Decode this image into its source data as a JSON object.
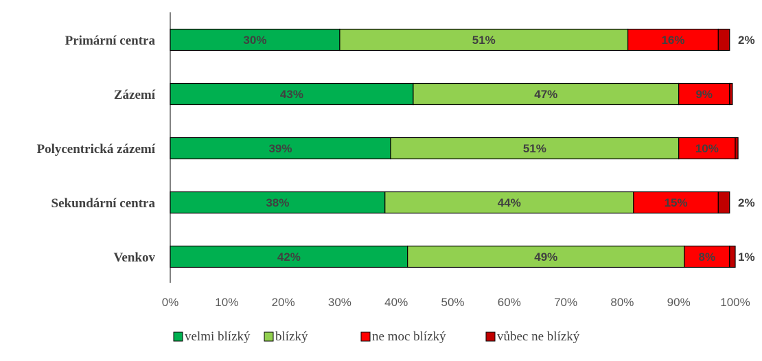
{
  "chart_data": {
    "type": "bar",
    "orientation": "horizontal",
    "stacked": true,
    "title": "",
    "xlabel": "",
    "ylabel": "",
    "xlim": [
      0,
      100
    ],
    "x_ticks": [
      "0%",
      "10%",
      "20%",
      "30%",
      "40%",
      "50%",
      "60%",
      "70%",
      "80%",
      "90%",
      "100%"
    ],
    "categories": [
      "Primární centra",
      "Zázemí",
      "Polycentrická zázemí",
      "Sekundární centra",
      "Venkov"
    ],
    "series": [
      {
        "name": "velmi blízký",
        "color": "#00b050",
        "values": [
          30,
          43,
          39,
          38,
          42
        ],
        "labels": [
          "30%",
          "43%",
          "39%",
          "38%",
          "42%"
        ]
      },
      {
        "name": "blízký",
        "color": "#92d050",
        "values": [
          51,
          47,
          51,
          44,
          49
        ],
        "labels": [
          "51%",
          "47%",
          "51%",
          "44%",
          "49%"
        ]
      },
      {
        "name": "ne moc blízký",
        "color": "#ff0000",
        "values": [
          16,
          9,
          10,
          15,
          8
        ],
        "labels": [
          "16%",
          "9%",
          "10%",
          "15%",
          "8%"
        ]
      },
      {
        "name": "vůbec ne blízký",
        "color": "#c00000",
        "values": [
          2,
          0.5,
          0.5,
          2,
          1
        ],
        "labels": [
          "2%",
          "",
          "",
          "2%",
          "1%"
        ]
      }
    ],
    "grid": false,
    "legend_position": "bottom"
  }
}
